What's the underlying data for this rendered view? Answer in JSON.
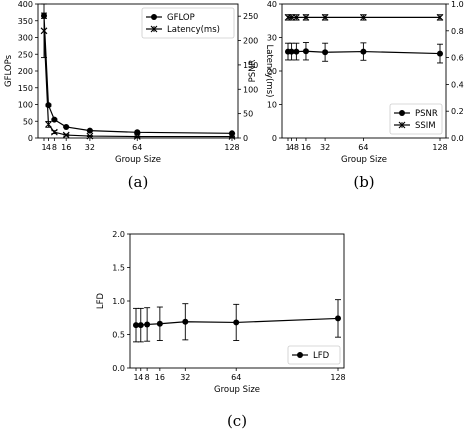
{
  "chart_data": [
    {
      "id": "a",
      "caption": "(a)",
      "type": "line",
      "x": [
        1,
        4,
        8,
        16,
        32,
        64,
        128
      ],
      "xticks": [
        1,
        4,
        8,
        16,
        32,
        64,
        128
      ],
      "xtick_labels": [
        "1",
        "4",
        "8",
        "16",
        "32",
        "64",
        "128"
      ],
      "xlabel": "Group Size",
      "ylabel": "GFLOPs",
      "ylabel_right": "Latency(ms)",
      "ylim": [
        0,
        400
      ],
      "yticks": [
        0,
        50,
        100,
        150,
        200,
        250,
        300,
        350,
        400
      ],
      "ylim_right": [
        0,
        275
      ],
      "yticks_right": [
        0,
        50,
        100,
        150,
        200,
        250
      ],
      "legend_position": "upper-right",
      "series": [
        {
          "name": "GFLOP",
          "axis": "left",
          "marker": "circle",
          "values": [
            365,
            98,
            55,
            33,
            22,
            17,
            14
          ],
          "errors": [
            8,
            3,
            2,
            1,
            1,
            1,
            1
          ]
        },
        {
          "name": "Latency(ms)",
          "axis": "right",
          "marker": "x",
          "values": [
            220,
            28,
            12,
            6,
            4,
            3,
            3
          ],
          "errors": [
            55,
            6,
            3,
            2,
            1,
            1,
            1
          ]
        }
      ]
    },
    {
      "id": "b",
      "caption": "(b)",
      "type": "line",
      "x": [
        1,
        4,
        8,
        16,
        32,
        64,
        128
      ],
      "xticks": [
        1,
        4,
        8,
        16,
        32,
        64,
        128
      ],
      "xtick_labels": [
        "1",
        "4",
        "8",
        "16",
        "32",
        "64",
        "128"
      ],
      "xlabel": "Group Size",
      "ylabel": "PSNR",
      "ylabel_right": "SSIM",
      "ylim": [
        0,
        40
      ],
      "yticks": [
        0,
        10,
        20,
        30,
        40
      ],
      "ylim_right": [
        0,
        1.0
      ],
      "yticks_right": [
        0.0,
        0.2,
        0.4,
        0.6,
        0.8,
        1.0
      ],
      "yticks_right_labels": [
        "0.0",
        "0.2",
        "0.4",
        "0.6",
        "0.8",
        "1.0"
      ],
      "legend_position": "lower-right",
      "series": [
        {
          "name": "PSNR",
          "axis": "left",
          "marker": "circle",
          "values": [
            25.8,
            25.8,
            25.8,
            25.9,
            25.6,
            25.8,
            25.2
          ],
          "errors": [
            2.5,
            2.5,
            2.5,
            2.6,
            2.7,
            2.6,
            2.8
          ]
        },
        {
          "name": "SSIM",
          "axis": "right",
          "marker": "x",
          "values": [
            0.9,
            0.9,
            0.9,
            0.9,
            0.9,
            0.9,
            0.9
          ],
          "errors": [
            0.02,
            0.02,
            0.02,
            0.02,
            0.02,
            0.02,
            0.02
          ]
        }
      ]
    },
    {
      "id": "c",
      "caption": "(c)",
      "type": "line",
      "x": [
        1,
        4,
        8,
        16,
        32,
        64,
        128
      ],
      "xticks": [
        1,
        4,
        8,
        16,
        32,
        64,
        128
      ],
      "xtick_labels": [
        "1",
        "4",
        "8",
        "16",
        "32",
        "64",
        "128"
      ],
      "xlabel": "Group Size",
      "ylabel": "LFD",
      "ylim": [
        0,
        2.0
      ],
      "yticks": [
        0.0,
        0.5,
        1.0,
        1.5,
        2.0
      ],
      "ytick_labels": [
        "0.0",
        "0.5",
        "1.0",
        "1.5",
        "2.0"
      ],
      "legend_position": "lower-right",
      "series": [
        {
          "name": "LFD",
          "axis": "left",
          "marker": "circle",
          "values": [
            0.64,
            0.64,
            0.65,
            0.66,
            0.69,
            0.68,
            0.74
          ],
          "errors": [
            0.25,
            0.25,
            0.25,
            0.25,
            0.27,
            0.27,
            0.28
          ]
        }
      ]
    }
  ]
}
